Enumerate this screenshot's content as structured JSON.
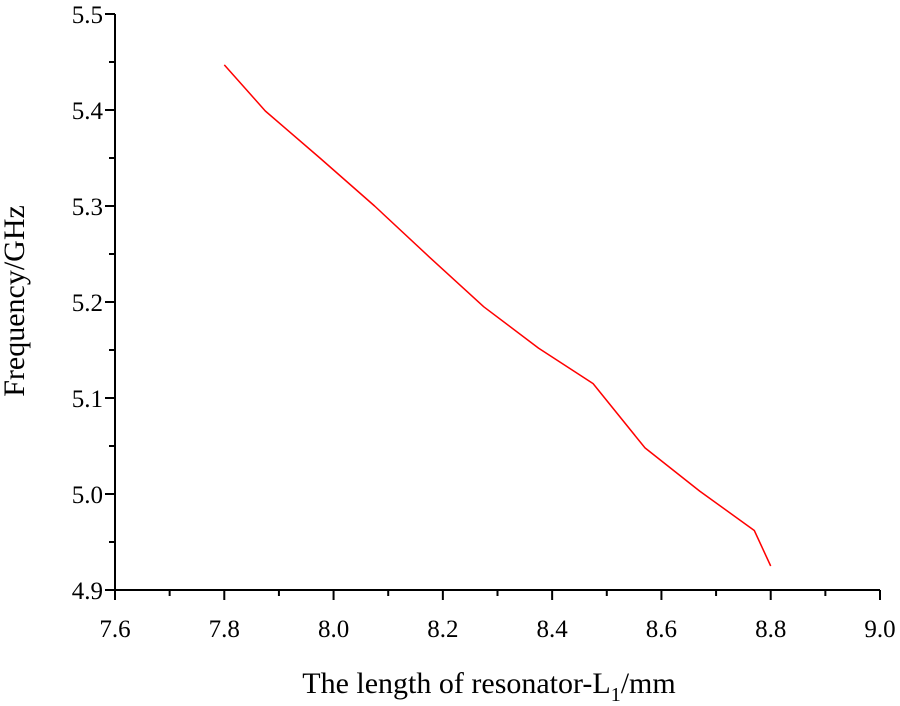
{
  "chart_data": {
    "type": "line",
    "title": "",
    "xlabel": "The length of resonator-L",
    "xlabel_subscript": "1",
    "xlabel_suffix": "/mm",
    "ylabel": "Frequency/GHz",
    "xlim": [
      7.6,
      9.0
    ],
    "ylim": [
      4.9,
      5.5
    ],
    "xticks": [
      7.6,
      7.8,
      8.0,
      8.2,
      8.4,
      8.6,
      8.8,
      9.0
    ],
    "yticks": [
      4.9,
      5.0,
      5.1,
      5.2,
      5.3,
      5.4,
      5.5
    ],
    "xtick_labels": [
      "7.6",
      "7.8",
      "8.0",
      "8.2",
      "8.4",
      "8.6",
      "8.8",
      "9.0"
    ],
    "ytick_labels": [
      "4.9",
      "5.0",
      "5.1",
      "5.2",
      "5.3",
      "5.4",
      "5.5"
    ],
    "grid": false,
    "series": [
      {
        "name": "Frequency",
        "color": "#ff0000",
        "x": [
          7.8,
          7.875,
          7.975,
          8.075,
          8.175,
          8.275,
          8.375,
          8.475,
          8.57,
          8.67,
          8.77,
          8.8
        ],
        "y": [
          5.447,
          5.399,
          5.35,
          5.3,
          5.247,
          5.195,
          5.152,
          5.115,
          5.048,
          5.003,
          4.962,
          4.925
        ]
      }
    ]
  }
}
